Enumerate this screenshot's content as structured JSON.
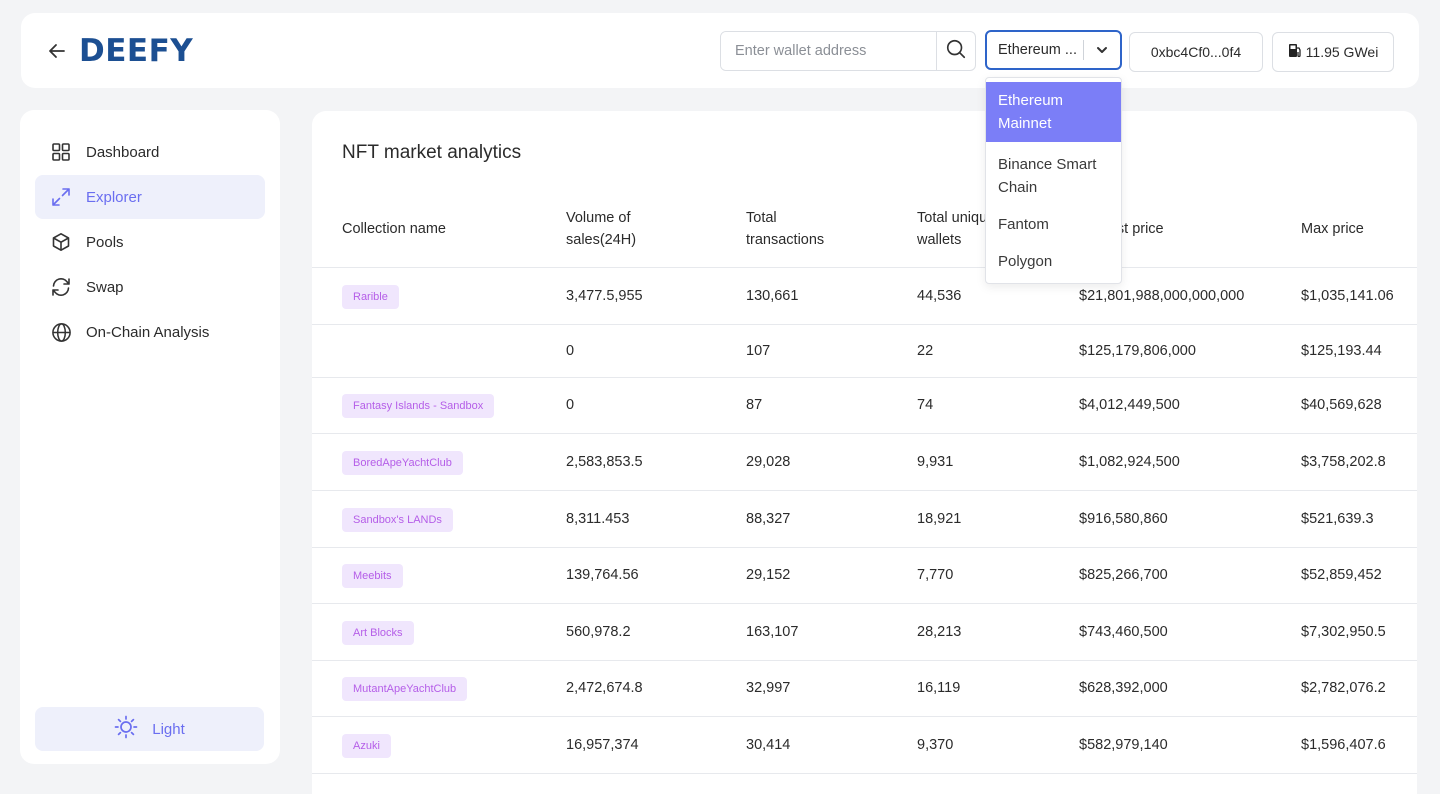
{
  "brand": {
    "name": "DEEFY"
  },
  "header": {
    "search_placeholder": "Enter wallet address",
    "network_selected": "Ethereum ...",
    "wallet_address": "0xbc4Cf0...0f4",
    "gas": "11.95 GWei"
  },
  "network_options": [
    "Ethereum Mainnet",
    "Binance Smart Chain",
    "Fantom",
    "Polygon"
  ],
  "sidebar": {
    "items": [
      {
        "label": "Dashboard",
        "icon": "grid-icon"
      },
      {
        "label": "Explorer",
        "icon": "expand-arrows-icon"
      },
      {
        "label": "Pools",
        "icon": "cube-icon"
      },
      {
        "label": "Swap",
        "icon": "refresh-icon"
      },
      {
        "label": "On-Chain Analysis",
        "icon": "globe-icon"
      }
    ],
    "active": "Explorer",
    "theme_label": "Light"
  },
  "main": {
    "title": "NFT market analytics",
    "columns": [
      "Collection name",
      "Volume of sales(24H)",
      "Total transactions",
      "Total unique wallets",
      "Highest price",
      "Max price"
    ],
    "rows": [
      {
        "name": "Rarible",
        "volume": "3,477.5,955",
        "transactions": "130,661",
        "wallets": "44,536",
        "highest": "$21,801,988,000,000,000",
        "max": "$1,035,141.06"
      },
      {
        "name": "",
        "volume": "0",
        "transactions": "107",
        "wallets": "22",
        "highest": "$125,179,806,000",
        "max": "$125,193.44"
      },
      {
        "name": "Fantasy Islands - Sandbox",
        "volume": "0",
        "transactions": "87",
        "wallets": "74",
        "highest": "$4,012,449,500",
        "max": "$40,569,628"
      },
      {
        "name": "BoredApeYachtClub",
        "volume": "2,583,853.5",
        "transactions": "29,028",
        "wallets": "9,931",
        "highest": "$1,082,924,500",
        "max": "$3,758,202.8"
      },
      {
        "name": "Sandbox's LANDs",
        "volume": "8,311.453",
        "transactions": "88,327",
        "wallets": "18,921",
        "highest": "$916,580,860",
        "max": "$521,639.3"
      },
      {
        "name": "Meebits",
        "volume": "139,764.56",
        "transactions": "29,152",
        "wallets": "7,770",
        "highest": "$825,266,700",
        "max": "$52,859,452"
      },
      {
        "name": "Art Blocks",
        "volume": "560,978.2",
        "transactions": "163,107",
        "wallets": "28,213",
        "highest": "$743,460,500",
        "max": "$7,302,950.5"
      },
      {
        "name": "MutantApeYachtClub",
        "volume": "2,472,674.8",
        "transactions": "32,997",
        "wallets": "16,119",
        "highest": "$628,392,000",
        "max": "$2,782,076.2"
      },
      {
        "name": "Azuki",
        "volume": "16,957,374",
        "transactions": "30,414",
        "wallets": "9,370",
        "highest": "$582,979,140",
        "max": "$1,596,407.6"
      }
    ]
  },
  "colors": {
    "accent": "#7b7ef7",
    "brand": "#1c4f92",
    "tag_bg": "#f0e6fd",
    "tag_text": "#b55ee8",
    "focus": "#2e64c9"
  }
}
